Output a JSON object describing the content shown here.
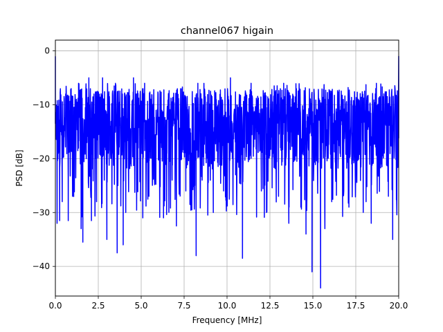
{
  "chart_data": {
    "type": "line",
    "title": "channel067 higain",
    "xlabel": "Frequency [MHz]",
    "ylabel": "PSD [dB]",
    "xlim": [
      0,
      20
    ],
    "ylim": [
      -45.5,
      2
    ],
    "grid": true,
    "xticks": [
      0,
      2.5,
      5,
      7.5,
      10,
      12.5,
      15,
      17.5,
      20
    ],
    "xtick_labels": [
      "0.0",
      "2.5",
      "5.0",
      "7.5",
      "10.0",
      "12.5",
      "15.0",
      "17.5",
      "20.0"
    ],
    "yticks": [
      0,
      -10,
      -20,
      -30,
      -40
    ],
    "ytick_labels": [
      "0",
      "−10",
      "−20",
      "−30",
      "−40"
    ],
    "series": [
      {
        "color": "#0000ff",
        "baseline_db": -15,
        "typical_range_db": [
          -22,
          -7
        ],
        "x": [
          0.0,
          0.1,
          0.25,
          0.33,
          0.4,
          0.5,
          0.6,
          0.75,
          0.85,
          0.92,
          1.0,
          1.2,
          1.35,
          1.5,
          1.6,
          1.8,
          1.95,
          2.1,
          2.25,
          2.4,
          2.6,
          2.75,
          2.85,
          3.0,
          3.2,
          3.5,
          3.6,
          3.9,
          3.95,
          4.1,
          4.4,
          4.55,
          4.75,
          5.1,
          5.2,
          5.45,
          5.75,
          6.1,
          6.3,
          6.5,
          6.8,
          7.05,
          7.3,
          7.6,
          7.95,
          8.2,
          8.3,
          8.55,
          8.9,
          9.2,
          9.5,
          9.8,
          10.2,
          10.5,
          10.9,
          11.1,
          11.4,
          11.75,
          12.0,
          12.3,
          12.7,
          13.0,
          13.3,
          13.6,
          14.1,
          14.3,
          14.6,
          14.95,
          15.15,
          15.45,
          15.7,
          16.1,
          16.5,
          16.8,
          17.1,
          17.5,
          17.8,
          18.1,
          18.4,
          18.7,
          19.0,
          19.4,
          19.65,
          19.9,
          20.0
        ],
        "y": [
          -1,
          -32,
          -31.5,
          -15,
          -28,
          -16,
          -8,
          -31.5,
          -16,
          -7,
          -27,
          -15,
          -6,
          -33,
          -35.5,
          -20,
          -5,
          -31.5,
          -8,
          -28,
          -15,
          -5,
          -24,
          -35,
          -14,
          -6,
          -37.5,
          -8,
          -36,
          -30,
          -15,
          -5,
          -26,
          -21,
          -6,
          -27,
          -17,
          -13,
          -31,
          -19,
          -24,
          -32.5,
          -7,
          -26,
          -29.5,
          -38,
          -6,
          -24,
          -20,
          -30,
          -10,
          -26,
          -5,
          -23,
          -38.5,
          -12,
          -6,
          -15,
          -26,
          -30,
          -19,
          -27,
          -6,
          -32,
          -14,
          -29,
          -34,
          -41,
          -17,
          -44,
          -33,
          -28,
          -16,
          -26,
          -29,
          -19,
          -15,
          -28,
          -32,
          -6,
          -21,
          -27,
          -35,
          -13,
          -1
        ]
      }
    ]
  }
}
